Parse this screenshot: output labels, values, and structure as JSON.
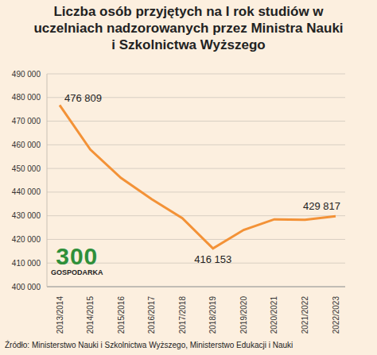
{
  "chart_data": {
    "type": "line",
    "title": "Liczba osób przyjętych na I rok studiów w uczelniach nadzorowanych przez Ministra Nauki i Szkolnictwa Wyższego",
    "source": "Źródło: Ministerstwo Nauki i Szkolnictwa Wyższego, Ministerstwo Edukacji i Nauki",
    "annotations": [
      "300",
      "GOSPODARKA"
    ],
    "categories": [
      "2013/2014",
      "2014/2015",
      "2015/2016",
      "2016/2017",
      "2017/2018",
      "2018/2019",
      "2019/2020",
      "2020/2021",
      "2021/2022",
      "2022/2023"
    ],
    "values": [
      476809,
      458000,
      446000,
      437000,
      429000,
      416153,
      424000,
      428500,
      428300,
      429817
    ],
    "value_labels": [
      "476 809",
      null,
      null,
      null,
      null,
      "416 153",
      null,
      null,
      null,
      "429 817"
    ],
    "data_labels": true,
    "color": "#f39237",
    "ylim": [
      400000,
      490000
    ],
    "yticks": [
      {
        "value": 400000,
        "label": "400 000"
      },
      {
        "value": 410000,
        "label": "410 000"
      },
      {
        "value": 420000,
        "label": "420 000"
      },
      {
        "value": 430000,
        "label": "430 000"
      },
      {
        "value": 440000,
        "label": "440 000"
      },
      {
        "value": 450000,
        "label": "450 000"
      },
      {
        "value": 460000,
        "label": "460 000"
      },
      {
        "value": 470000,
        "label": "470 000"
      },
      {
        "value": 480000,
        "label": "480 000"
      },
      {
        "value": 490000,
        "label": "490 000"
      }
    ],
    "grid": true
  }
}
